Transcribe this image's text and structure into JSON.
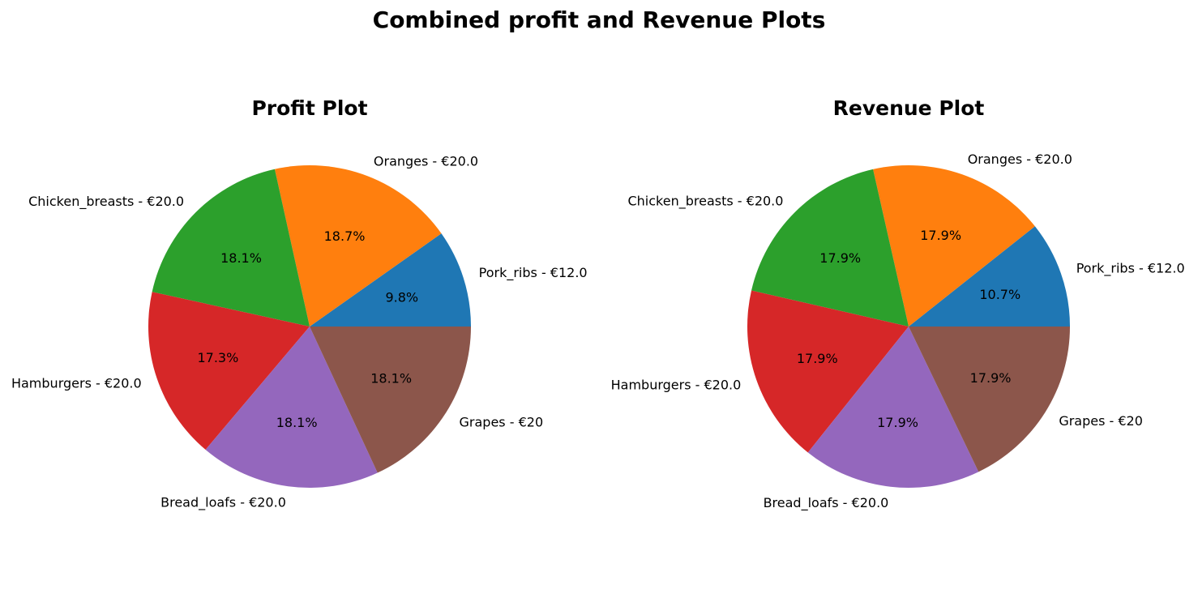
{
  "figure_title": "Combined profit and Revenue Plots",
  "chart_data": [
    {
      "type": "pie",
      "title": "Profit Plot",
      "start_angle": 0,
      "direction": "counterclockwise",
      "slices": [
        {
          "label": "Pork_ribs - €12.0",
          "percent": "9.8%",
          "value": 9.8,
          "color": "#1f77b4"
        },
        {
          "label": "Oranges - €20.0",
          "percent": "18.7%",
          "value": 18.7,
          "color": "#ff7f0e"
        },
        {
          "label": "Chicken_breasts - €20.0",
          "percent": "18.1%",
          "value": 18.1,
          "color": "#2ca02c"
        },
        {
          "label": "Hamburgers - €20.0",
          "percent": "17.3%",
          "value": 17.3,
          "color": "#d62728"
        },
        {
          "label": "Bread_loafs - €20.0",
          "percent": "18.1%",
          "value": 18.1,
          "color": "#9467bd"
        },
        {
          "label": "Grapes - €20",
          "percent": "18.1%",
          "value": 18.1,
          "color": "#8c564b"
        }
      ]
    },
    {
      "type": "pie",
      "title": "Revenue Plot",
      "start_angle": 0,
      "direction": "counterclockwise",
      "slices": [
        {
          "label": "Pork_ribs - €12.0",
          "percent": "10.7%",
          "value": 10.7,
          "color": "#1f77b4"
        },
        {
          "label": "Oranges - €20.0",
          "percent": "17.9%",
          "value": 17.9,
          "color": "#ff7f0e"
        },
        {
          "label": "Chicken_breasts - €20.0",
          "percent": "17.9%",
          "value": 17.9,
          "color": "#2ca02c"
        },
        {
          "label": "Hamburgers - €20.0",
          "percent": "17.9%",
          "value": 17.9,
          "color": "#d62728"
        },
        {
          "label": "Bread_loafs - €20.0",
          "percent": "17.9%",
          "value": 17.9,
          "color": "#9467bd"
        },
        {
          "label": "Grapes - €20",
          "percent": "17.9%",
          "value": 17.9,
          "color": "#8c564b"
        }
      ]
    }
  ]
}
